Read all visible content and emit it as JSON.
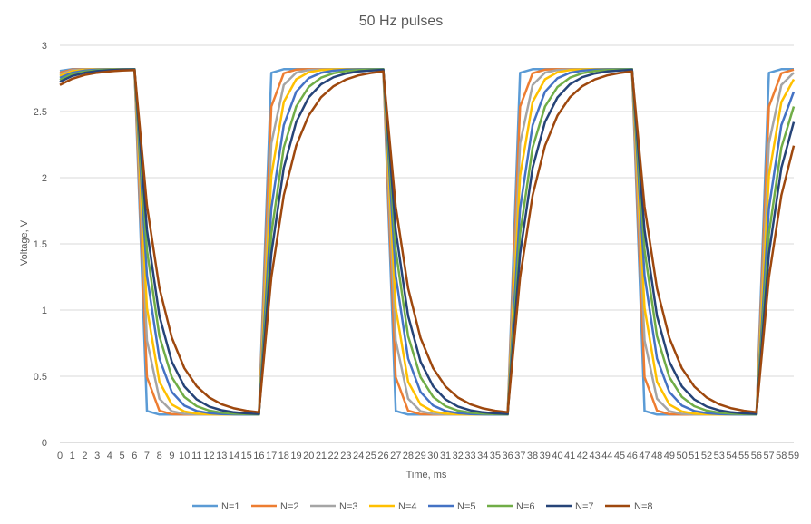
{
  "chart_data": {
    "type": "line",
    "title": "50 Hz pulses",
    "xlabel": "Time, ms",
    "ylabel": "Voltage, V",
    "x": [
      0,
      1,
      2,
      3,
      4,
      5,
      6,
      7,
      8,
      9,
      10,
      11,
      12,
      13,
      14,
      15,
      16,
      17,
      18,
      19,
      20,
      21,
      22,
      23,
      24,
      25,
      26,
      27,
      28,
      29,
      30,
      31,
      32,
      33,
      34,
      35,
      36,
      37,
      38,
      39,
      40,
      41,
      42,
      43,
      44,
      45,
      46,
      47,
      48,
      49,
      50,
      51,
      52,
      53,
      54,
      55,
      56,
      57,
      58,
      59
    ],
    "ylim": [
      0,
      3
    ],
    "yticks": [
      0,
      0.5,
      1,
      1.5,
      2,
      2.5,
      3
    ],
    "ytick_labels": [
      "0",
      "0.5",
      "1",
      "1.5",
      "2",
      "2.5",
      "3"
    ],
    "grid": "horizontal",
    "legend": "bottom",
    "high_level": 2.82,
    "low_level": 0.21,
    "series": [
      {
        "name": "N=1",
        "color": "#5B9BD5",
        "tau": 0.22
      },
      {
        "name": "N=2",
        "color": "#ED7D31",
        "tau": 0.45
      },
      {
        "name": "N=3",
        "color": "#A5A5A5",
        "tau": 0.65
      },
      {
        "name": "N=4",
        "color": "#FFC000",
        "tau": 0.85
      },
      {
        "name": "N=5",
        "color": "#4472C4",
        "tau": 1.1
      },
      {
        "name": "N=6",
        "color": "#70AD47",
        "tau": 1.35
      },
      {
        "name": "N=7",
        "color": "#264478",
        "tau": 1.6
      },
      {
        "name": "N=8",
        "color": "#9E480E",
        "tau": 2.0
      }
    ]
  }
}
